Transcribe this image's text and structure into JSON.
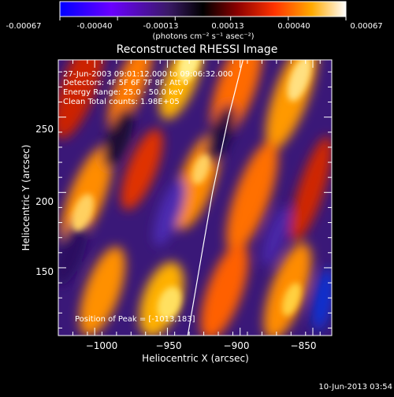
{
  "colorbar": {
    "tick_labels": [
      "-0.00067",
      "-0.00040",
      "-0.00013",
      "0.00013",
      "0.00040",
      "0.00067"
    ],
    "ticks": [
      -0.00067,
      -0.0004,
      -0.00013,
      0.00013,
      0.0004,
      0.00067
    ],
    "range": [
      -0.00067,
      0.00067
    ],
    "colors": [
      "#0000ff",
      "#6a00ff",
      "#3a1a66",
      "#000000",
      "#8b0000",
      "#ff3300",
      "#ffaa00",
      "#ffffff"
    ],
    "units_label": "(photons cm⁻² s⁻¹ asec⁻²)"
  },
  "chart_data": {
    "type": "heatmap",
    "title": "Reconstructed RHESSI Image",
    "xlabel": "Heliocentric X (arcsec)",
    "ylabel": "Heliocentric Y (arcsec)",
    "xlim": [
      -1025,
      -837
    ],
    "ylim": [
      105,
      288
    ],
    "x_tick_labels": [
      "−1000",
      "−950",
      "−900",
      "−850"
    ],
    "x_ticks": [
      -1000,
      -950,
      -900,
      -850
    ],
    "y_tick_labels": [
      "150",
      "200",
      "250"
    ],
    "y_ticks": [
      150,
      200,
      250
    ],
    "annotations": [
      "27-Jun-2003 09:01:12.000 to 09:06:32.000",
      "Detectors: 4F 5F 6F 7F 8F, Att 0",
      "Energy Range: 25.0 - 50.0 keV",
      "Clean     Total counts: 1.98E+05"
    ],
    "peak_label": "Position of Peak = [-1013,183]",
    "peak": [
      -1013,
      183
    ],
    "limb_points": [
      [
        -936,
        105
      ],
      [
        -928,
        150
      ],
      [
        -919,
        200
      ],
      [
        -908,
        250
      ],
      [
        -898,
        288
      ]
    ]
  },
  "footer": {
    "timestamp": "10-Jun-2013 03:54"
  }
}
